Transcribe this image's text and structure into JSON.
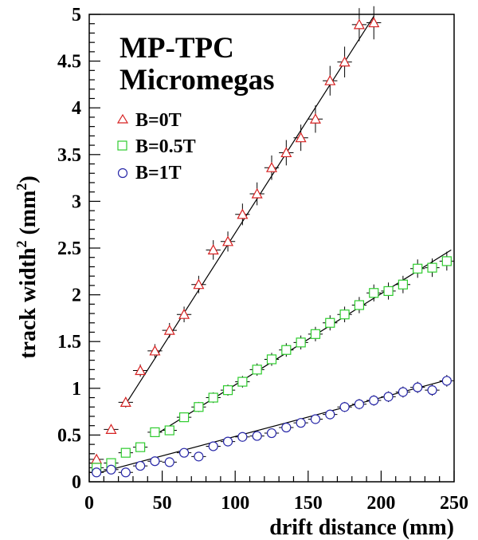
{
  "chart_data": {
    "type": "scatter",
    "title_lines": [
      "MP-TPC",
      "Micromegas"
    ],
    "xlabel": "drift distance (mm)",
    "ylabel_main": "track width",
    "ylabel_sup": "2",
    "ylabel_unit_open": " (mm",
    "ylabel_unit_sup": "2",
    "ylabel_unit_close": ")",
    "xlim": [
      0,
      250
    ],
    "ylim": [
      0,
      5
    ],
    "x_ticks": [
      "0",
      "50",
      "100",
      "150",
      "200",
      "250"
    ],
    "y_ticks": [
      "0",
      "0.5",
      "1",
      "1.5",
      "2",
      "2.5",
      "3",
      "3.5",
      "4",
      "4.5",
      "5"
    ],
    "grid": false,
    "legend_position": "top-left",
    "series": [
      {
        "name": "B=0T",
        "marker": "triangle",
        "color": "#d62020",
        "x": [
          5,
          15,
          25,
          35,
          45,
          55,
          65,
          75,
          85,
          95,
          105,
          115,
          125,
          135,
          145,
          155,
          165,
          175,
          185,
          195
        ],
        "y": [
          0.24,
          0.56,
          0.85,
          1.19,
          1.4,
          1.62,
          1.79,
          2.11,
          2.48,
          2.57,
          2.86,
          3.08,
          3.36,
          3.52,
          3.68,
          3.88,
          4.29,
          4.49,
          4.89,
          4.91
        ],
        "fit": {
          "x": [
            25,
            195
          ],
          "y": [
            0.83,
            4.98
          ]
        }
      },
      {
        "name": "B=0.5T",
        "marker": "square",
        "color": "#2ecc2e",
        "x": [
          5,
          15,
          25,
          35,
          45,
          55,
          65,
          75,
          85,
          95,
          105,
          115,
          125,
          135,
          145,
          155,
          165,
          175,
          185,
          195,
          205,
          215,
          225,
          235,
          245
        ],
        "y": [
          0.15,
          0.2,
          0.31,
          0.37,
          0.53,
          0.55,
          0.69,
          0.8,
          0.9,
          0.98,
          1.07,
          1.2,
          1.31,
          1.41,
          1.49,
          1.58,
          1.7,
          1.79,
          1.89,
          2.02,
          2.04,
          2.11,
          2.28,
          2.29,
          2.36
        ],
        "fit": {
          "x": [
            45,
            248
          ],
          "y": [
            0.5,
            2.48
          ]
        }
      },
      {
        "name": "B=1T",
        "marker": "circle",
        "color": "#2828a8",
        "x": [
          5,
          15,
          25,
          35,
          45,
          55,
          65,
          75,
          85,
          95,
          105,
          115,
          125,
          135,
          145,
          155,
          165,
          175,
          185,
          195,
          205,
          215,
          225,
          235,
          245
        ],
        "y": [
          0.1,
          0.13,
          0.1,
          0.17,
          0.22,
          0.21,
          0.31,
          0.27,
          0.38,
          0.43,
          0.48,
          0.49,
          0.52,
          0.58,
          0.63,
          0.67,
          0.72,
          0.8,
          0.83,
          0.87,
          0.91,
          0.96,
          1.01,
          0.98,
          1.08
        ],
        "fit": {
          "x": [
            5,
            248
          ],
          "y": [
            0.09,
            1.1
          ]
        }
      }
    ]
  }
}
